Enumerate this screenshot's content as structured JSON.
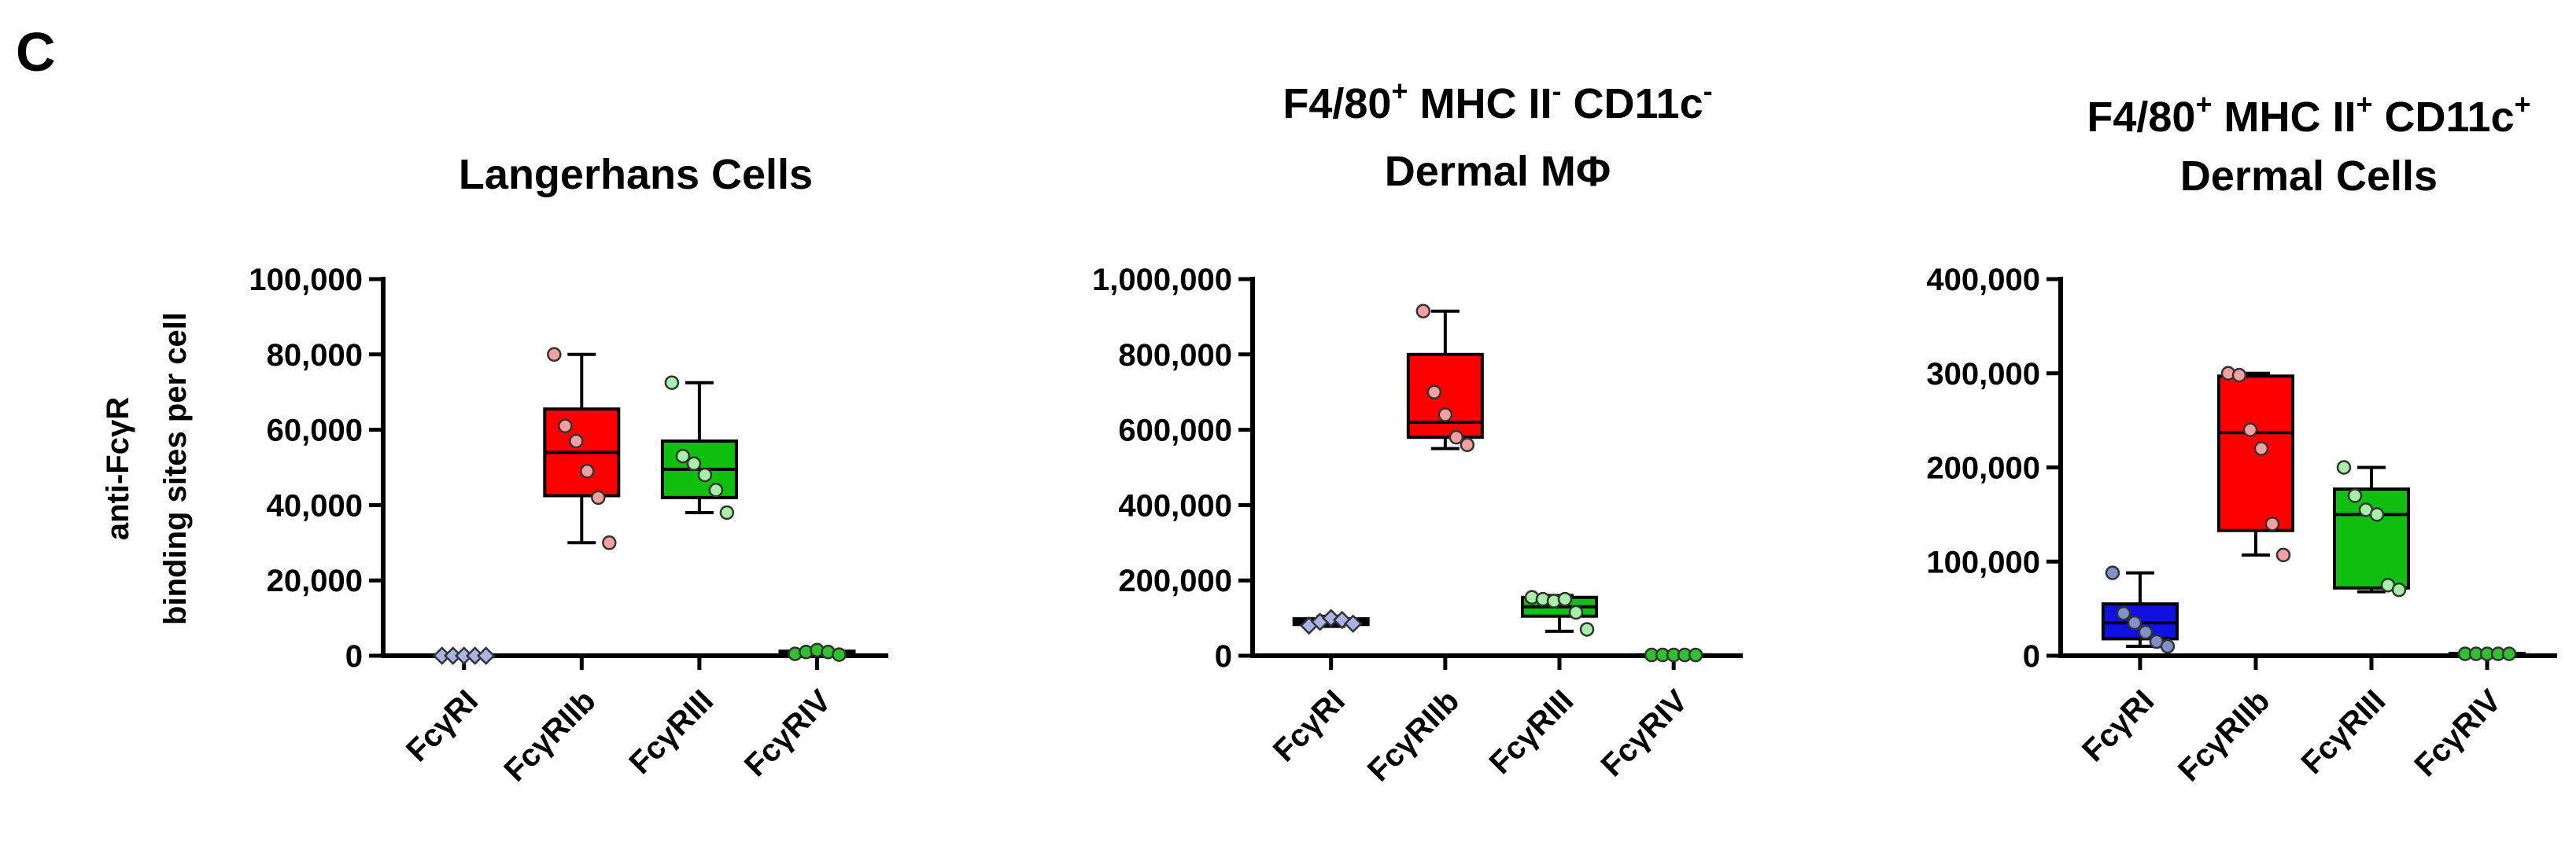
{
  "panel_label": "C",
  "chart_data": [
    {
      "type": "box",
      "title_lines": [
        [
          {
            "text": "Langerhans Cells"
          }
        ]
      ],
      "ylabel_lines": [
        "anti-FcγR",
        "binding sites per cell"
      ],
      "categories": [
        "FcγRI",
        "FcγRIIb",
        "FcγRIII",
        "FcγRIV"
      ],
      "ylim": [
        0,
        100000
      ],
      "yticks": [
        0,
        {
          "value": 20000,
          "label": "20,000"
        },
        {
          "value": 40000,
          "label": "40,000"
        },
        {
          "value": 60000,
          "label": "60,000"
        },
        {
          "value": 80000,
          "label": "80,000"
        },
        {
          "value": 100000,
          "label": "100,000"
        }
      ],
      "boxes": [
        {
          "color": "#3040e0",
          "point_color": "#a8b4e8",
          "marker": "diamond",
          "min": 0,
          "q1": 0,
          "median": 0,
          "q3": 0,
          "max": 0,
          "points": [
            0,
            0,
            0,
            0,
            0
          ]
        },
        {
          "color": "#ff0000",
          "point_color": "#f4a0a0",
          "marker": "circle",
          "min": 30000,
          "q1": 42500,
          "median": 54000,
          "q3": 65500,
          "max": 80000,
          "points": [
            80000,
            61000,
            57000,
            49000,
            42000,
            30000
          ]
        },
        {
          "color": "#10c010",
          "point_color": "#a8f0a8",
          "marker": "circle",
          "min": 38000,
          "q1": 42000,
          "median": 49500,
          "q3": 57000,
          "max": 72500,
          "points": [
            72500,
            53000,
            51000,
            48000,
            44000,
            38000
          ]
        },
        {
          "color": "#10c010",
          "point_color": "#30c030",
          "marker": "circle",
          "min": 300,
          "q1": 500,
          "median": 1000,
          "q3": 1200,
          "max": 1500,
          "points": [
            500,
            1000,
            1500,
            1000,
            300
          ]
        }
      ]
    },
    {
      "type": "box",
      "title_lines": [
        [
          {
            "text": "F4/80"
          },
          {
            "text": "+",
            "sup": true
          },
          {
            "text": " MHC II"
          },
          {
            "text": "-",
            "sup": true
          },
          {
            "text": " CD11c"
          },
          {
            "text": "-",
            "sup": true
          }
        ],
        [
          {
            "text": "Dermal MΦ"
          }
        ]
      ],
      "categories": [
        "FcγRI",
        "FcγRIIb",
        "FcγRIII",
        "FcγRIV"
      ],
      "ylim": [
        0,
        1000000
      ],
      "yticks": [
        0,
        {
          "value": 200000,
          "label": "200,000"
        },
        {
          "value": 400000,
          "label": "400,000"
        },
        {
          "value": 600000,
          "label": "600,000"
        },
        {
          "value": 800000,
          "label": "800,000"
        },
        {
          "value": 1000000,
          "label": "1,000,000"
        }
      ],
      "boxes": [
        {
          "color": "#1020e0",
          "point_color": "#a8b4e8",
          "marker": "diamond",
          "min": 78000,
          "q1": 83000,
          "median": 90000,
          "q3": 98000,
          "max": 105000,
          "points": [
            80000,
            90000,
            100000,
            95000,
            85000
          ]
        },
        {
          "color": "#ff0000",
          "point_color": "#f4a0a0",
          "marker": "circle",
          "min": 550000,
          "q1": 580000,
          "median": 620000,
          "q3": 800000,
          "max": 915000,
          "points": [
            915000,
            700000,
            640000,
            580000,
            560000
          ]
        },
        {
          "color": "#10c010",
          "point_color": "#a8f0a8",
          "marker": "circle",
          "min": 65000,
          "q1": 105000,
          "median": 130000,
          "q3": 155000,
          "max": 160000,
          "points": [
            155000,
            150000,
            145000,
            150000,
            115000,
            70000
          ]
        },
        {
          "color": "#10c010",
          "point_color": "#30c030",
          "marker": "circle",
          "min": 1000,
          "q1": 1500,
          "median": 2000,
          "q3": 2500,
          "max": 3000,
          "points": [
            2000,
            2000,
            2000,
            2000,
            2000
          ]
        }
      ]
    },
    {
      "type": "box",
      "title_lines": [
        [
          {
            "text": "F4/80"
          },
          {
            "text": "+",
            "sup": true
          },
          {
            "text": " MHC II"
          },
          {
            "text": "+",
            "sup": true
          },
          {
            "text": " CD11c"
          },
          {
            "text": "+",
            "sup": true
          }
        ],
        [
          {
            "text": "Dermal Cells"
          }
        ]
      ],
      "categories": [
        "FcγRI",
        "FcγRIIb",
        "FcγRIII",
        "FcγRIV"
      ],
      "ylim": [
        0,
        400000
      ],
      "yticks": [
        0,
        {
          "value": 100000,
          "label": "100,000"
        },
        {
          "value": 200000,
          "label": "200,000"
        },
        {
          "value": 300000,
          "label": "300,000"
        },
        {
          "value": 400000,
          "label": "400,000"
        }
      ],
      "boxes": [
        {
          "color": "#1010e0",
          "point_color": "#8090c8",
          "marker": "circle",
          "min": 10000,
          "q1": 18000,
          "median": 35000,
          "q3": 55000,
          "max": 88000,
          "points": [
            88000,
            45000,
            35000,
            25000,
            15000,
            10000
          ]
        },
        {
          "color": "#ff0000",
          "point_color": "#f4a0a0",
          "marker": "circle",
          "min": 107000,
          "q1": 133000,
          "median": 237000,
          "q3": 297000,
          "max": 300000,
          "points": [
            300000,
            298000,
            240000,
            220000,
            140000,
            107000
          ]
        },
        {
          "color": "#10c010",
          "point_color": "#a8f0a8",
          "marker": "circle",
          "min": 68000,
          "q1": 72000,
          "median": 150000,
          "q3": 177000,
          "max": 200000,
          "points": [
            200000,
            170000,
            155000,
            150000,
            75000,
            70000
          ]
        },
        {
          "color": "#10c010",
          "point_color": "#30c030",
          "marker": "circle",
          "min": 1000,
          "q1": 1500,
          "median": 2000,
          "q3": 2500,
          "max": 3000,
          "points": [
            2000,
            2000,
            2000,
            2000,
            2000
          ]
        }
      ]
    }
  ]
}
